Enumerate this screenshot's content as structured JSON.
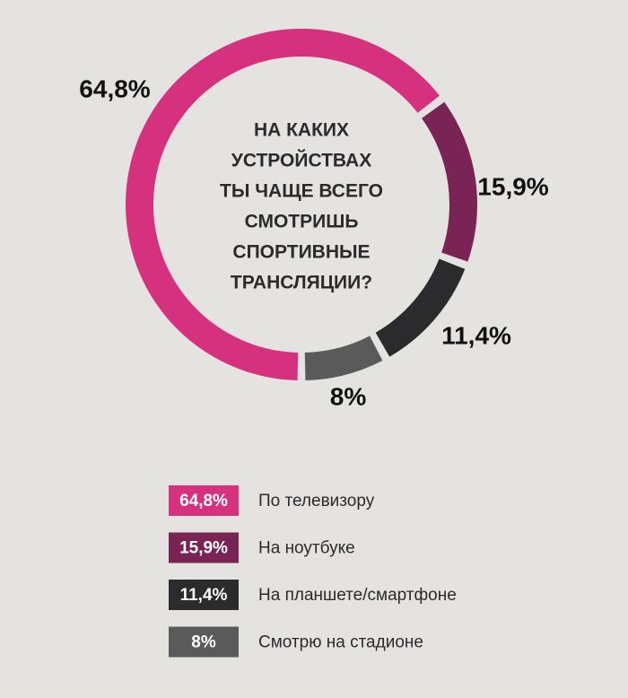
{
  "chart_data": {
    "type": "donut",
    "title": [
      "НА КАКИХ",
      "УСТРОЙСТВАХ",
      "ТЫ ЧАЩЕ ВСЕГО",
      "СМОТРИШЬ",
      "СПОРТИВНЫЕ",
      "ТРАНСЛЯЦИИ?"
    ],
    "categories": [
      "По телевизору",
      "На ноутбуке",
      "На планшете/смартфоне",
      "Смотрю на стадионе"
    ],
    "values": [
      64.8,
      15.9,
      11.4,
      8
    ],
    "value_labels": [
      "64,8%",
      "15,9%",
      "11,4%",
      "8%"
    ],
    "colors": [
      "#d6317f",
      "#7a2455",
      "#2b2a2c",
      "#5b5a5b"
    ]
  }
}
